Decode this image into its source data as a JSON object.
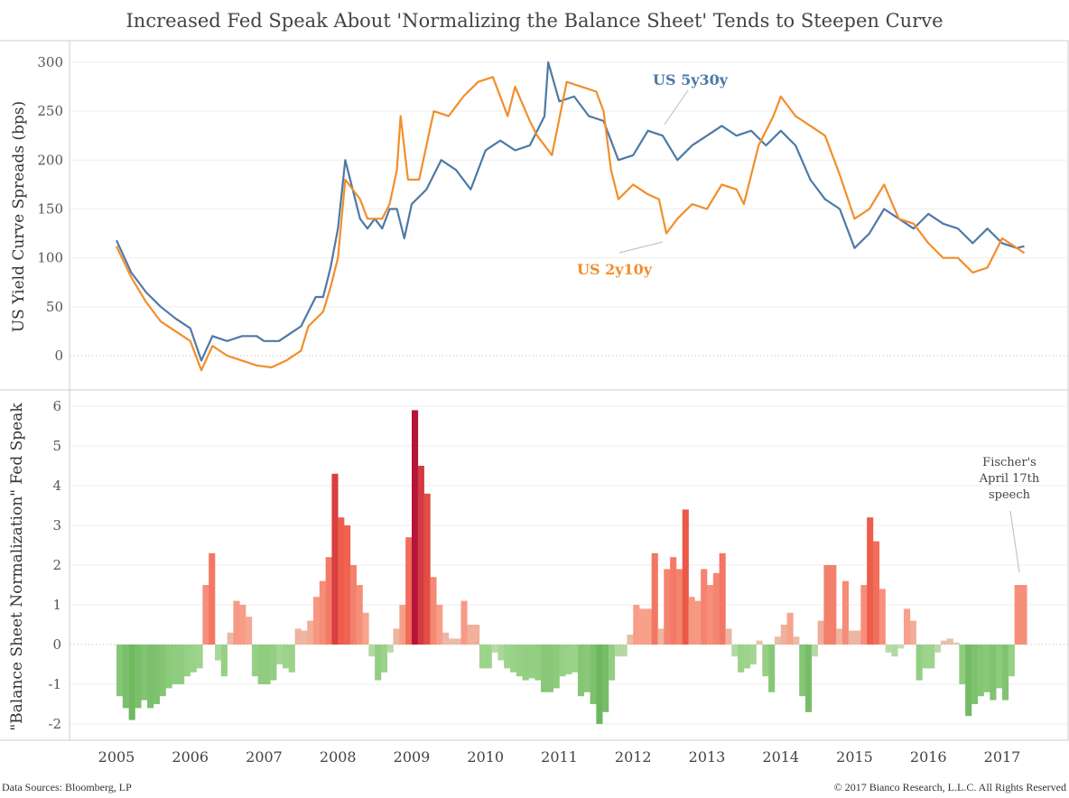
{
  "title": "Increased Fed Speak About 'Normalizing the Balance Sheet' Tends to Steepen Curve",
  "footer": {
    "sources": "Data Sources: Bloomberg, LP",
    "copyright": "© 2017 Bianco Research, L.L.C. All Rights Reserved"
  },
  "chart_data": [
    {
      "type": "line",
      "ylabel": "US Yield Curve Spreads (bps)",
      "ylim": [
        -30,
        320
      ],
      "yticks": [
        "0",
        "50",
        "100",
        "150",
        "200",
        "250",
        "300"
      ],
      "grid": true,
      "series": [
        {
          "name": "US 5y30y",
          "color": "#4e79a7",
          "x": [
            2005.0,
            2005.2,
            2005.4,
            2005.6,
            2005.8,
            2006.0,
            2006.15,
            2006.3,
            2006.5,
            2006.7,
            2006.9,
            2007.0,
            2007.2,
            2007.4,
            2007.5,
            2007.7,
            2007.8,
            2007.9,
            2008.0,
            2008.1,
            2008.2,
            2008.3,
            2008.4,
            2008.5,
            2008.6,
            2008.7,
            2008.8,
            2008.9,
            2009.0,
            2009.2,
            2009.4,
            2009.6,
            2009.8,
            2010.0,
            2010.2,
            2010.4,
            2010.6,
            2010.8,
            2010.85,
            2011.0,
            2011.2,
            2011.4,
            2011.6,
            2011.8,
            2012.0,
            2012.2,
            2012.4,
            2012.6,
            2012.8,
            2013.0,
            2013.2,
            2013.4,
            2013.6,
            2013.8,
            2014.0,
            2014.2,
            2014.4,
            2014.6,
            2014.8,
            2015.0,
            2015.2,
            2015.4,
            2015.6,
            2015.8,
            2016.0,
            2016.2,
            2016.4,
            2016.6,
            2016.8,
            2017.0,
            2017.2,
            2017.3
          ],
          "y": [
            118,
            85,
            65,
            50,
            38,
            28,
            -5,
            20,
            15,
            20,
            20,
            15,
            15,
            25,
            30,
            60,
            60,
            90,
            130,
            200,
            170,
            140,
            130,
            140,
            130,
            150,
            150,
            120,
            155,
            170,
            200,
            190,
            170,
            210,
            220,
            210,
            215,
            245,
            300,
            260,
            265,
            245,
            240,
            200,
            205,
            230,
            225,
            200,
            215,
            225,
            235,
            225,
            230,
            215,
            230,
            215,
            180,
            160,
            150,
            110,
            125,
            150,
            140,
            130,
            145,
            135,
            130,
            115,
            130,
            115,
            110,
            112
          ]
        },
        {
          "name": "US 2y10y",
          "color": "#f28e2b",
          "x": [
            2005.0,
            2005.2,
            2005.4,
            2005.6,
            2005.8,
            2006.0,
            2006.15,
            2006.3,
            2006.5,
            2006.7,
            2006.9,
            2007.1,
            2007.3,
            2007.5,
            2007.6,
            2007.8,
            2007.9,
            2008.0,
            2008.1,
            2008.2,
            2008.3,
            2008.4,
            2008.6,
            2008.7,
            2008.8,
            2008.85,
            2008.95,
            2009.1,
            2009.3,
            2009.5,
            2009.7,
            2009.9,
            2010.1,
            2010.3,
            2010.4,
            2010.6,
            2010.7,
            2010.9,
            2011.1,
            2011.3,
            2011.5,
            2011.6,
            2011.7,
            2011.8,
            2012.0,
            2012.2,
            2012.35,
            2012.45,
            2012.6,
            2012.8,
            2013.0,
            2013.2,
            2013.4,
            2013.5,
            2013.7,
            2013.9,
            2014.0,
            2014.2,
            2014.4,
            2014.6,
            2014.8,
            2015.0,
            2015.2,
            2015.4,
            2015.6,
            2015.8,
            2016.0,
            2016.2,
            2016.4,
            2016.6,
            2016.8,
            2017.0,
            2017.2,
            2017.3
          ],
          "y": [
            112,
            80,
            55,
            35,
            25,
            15,
            -15,
            10,
            0,
            -5,
            -10,
            -12,
            -5,
            5,
            30,
            45,
            70,
            100,
            180,
            170,
            160,
            140,
            140,
            155,
            190,
            245,
            180,
            180,
            250,
            245,
            265,
            280,
            285,
            245,
            275,
            240,
            225,
            205,
            280,
            275,
            270,
            250,
            190,
            160,
            175,
            165,
            160,
            125,
            140,
            155,
            150,
            175,
            170,
            155,
            215,
            245,
            265,
            245,
            235,
            225,
            185,
            140,
            150,
            175,
            140,
            135,
            115,
            100,
            100,
            85,
            90,
            120,
            110,
            105
          ]
        }
      ]
    },
    {
      "type": "bar",
      "ylabel": "\"Balance Sheet Normalization\" Fed Speak",
      "ylim": [
        -2.4,
        6.4
      ],
      "yticks": [
        "-2",
        "-1",
        "0",
        "1",
        "2",
        "3",
        "4",
        "5",
        "6"
      ],
      "xticks": [
        "2005",
        "2006",
        "2007",
        "2008",
        "2009",
        "2010",
        "2011",
        "2012",
        "2013",
        "2014",
        "2015",
        "2016",
        "2017"
      ],
      "x_start": "2005-01",
      "x_step": "month",
      "values": [
        -1.3,
        -1.6,
        -1.9,
        -1.6,
        -1.4,
        -1.6,
        -1.5,
        -1.3,
        -1.1,
        -1.0,
        -1.0,
        -0.8,
        -0.7,
        -0.6,
        1.5,
        2.3,
        -0.4,
        -0.8,
        0.3,
        1.1,
        1.0,
        0.7,
        -0.8,
        -1.0,
        -1.0,
        -0.9,
        -0.5,
        -0.6,
        -0.7,
        0.4,
        0.35,
        0.6,
        1.2,
        1.6,
        2.2,
        4.3,
        3.2,
        3.0,
        2.0,
        1.5,
        0.8,
        -0.3,
        -0.9,
        -0.7,
        -0.2,
        0.4,
        1.0,
        2.7,
        5.9,
        4.5,
        3.8,
        1.7,
        1.0,
        0.3,
        0.15,
        0.15,
        1.1,
        0.5,
        0.5,
        -0.6,
        -0.6,
        -0.2,
        -0.4,
        -0.6,
        -0.7,
        -0.8,
        -0.9,
        -0.85,
        -0.9,
        -1.2,
        -1.2,
        -1.1,
        -0.8,
        -0.75,
        -0.7,
        -1.3,
        -1.2,
        -1.5,
        -2.0,
        -1.7,
        -0.9,
        -0.3,
        -0.3,
        0.25,
        1.0,
        0.9,
        0.9,
        2.3,
        0.4,
        1.9,
        2.2,
        1.9,
        3.4,
        1.2,
        1.1,
        1.9,
        1.5,
        1.8,
        2.3,
        0.4,
        -0.3,
        -0.7,
        -0.6,
        -0.5,
        0.1,
        -0.8,
        -1.2,
        0.2,
        0.5,
        0.8,
        0.2,
        -1.3,
        -1.7,
        -0.3,
        0.6,
        2.0,
        2.0,
        0.4,
        1.6,
        0.35,
        0.35,
        1.5,
        3.2,
        2.6,
        1.4,
        -0.2,
        -0.3,
        -0.1,
        0.9,
        0.6,
        -0.9,
        -0.6,
        -0.6,
        -0.2,
        0.1,
        0.15,
        0.05,
        -1.0,
        -1.8,
        -1.5,
        -1.3,
        -1.2,
        -1.4,
        -1.1,
        -1.4,
        -0.8,
        1.5,
        1.5
      ],
      "annotation": "Fischer's|April 17th|speech",
      "colors": {
        "neg_light": "#c9dcb9",
        "neg_mid": "#9dd48c",
        "neg_dark": "#6cb75e",
        "pos_light": "#e6c4b2",
        "pos_mid": "#f8a08a",
        "pos_strong": "#ee5a48",
        "pos_dark": "#b3123a"
      }
    }
  ]
}
